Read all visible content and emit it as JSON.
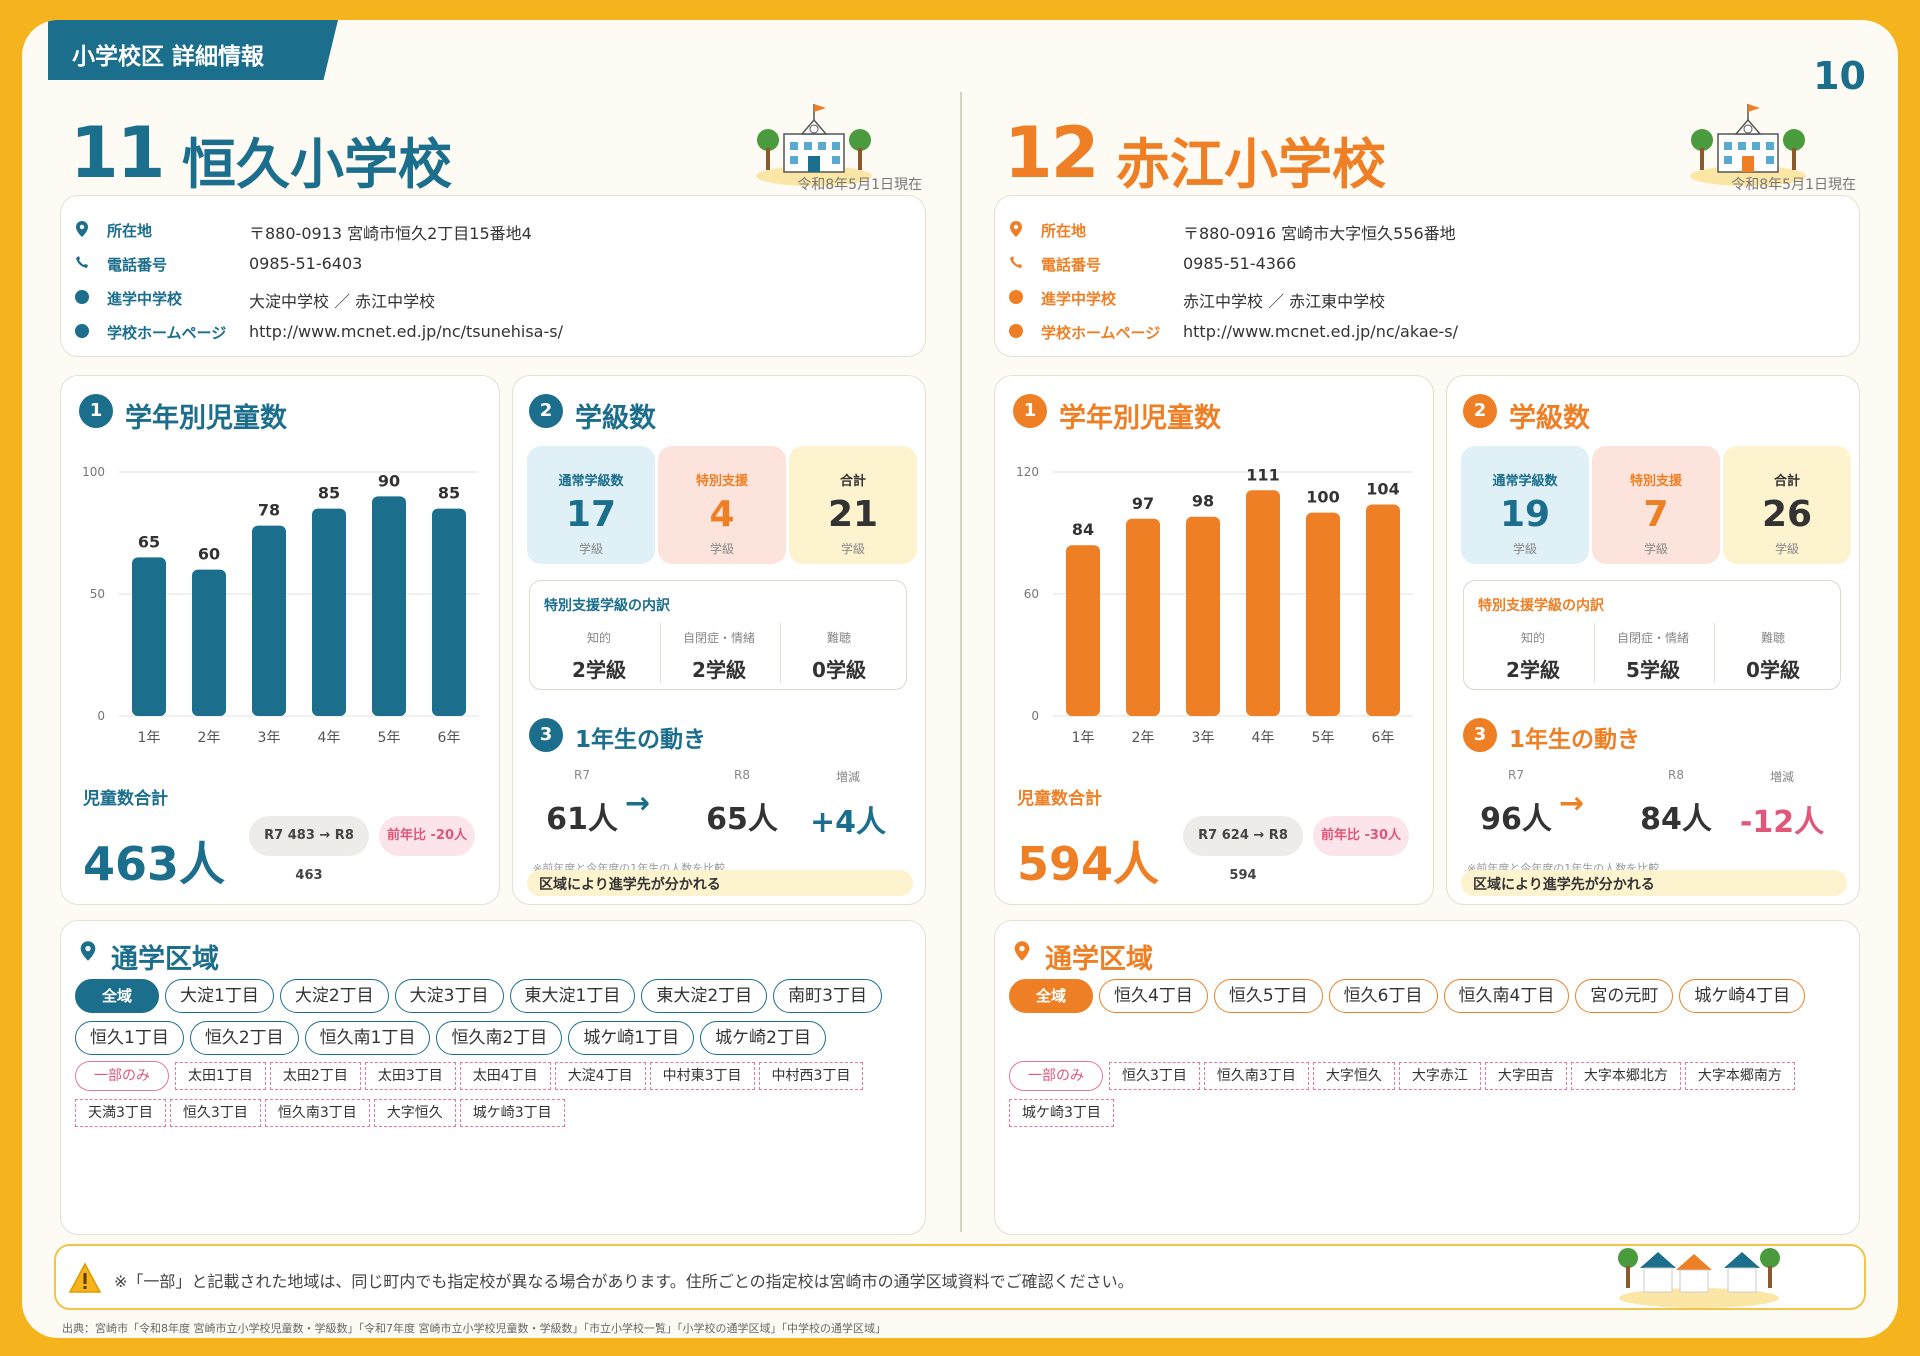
{
  "header": {
    "section_tag": "小学校区 詳細情報",
    "page_number": "10"
  },
  "colors": {
    "teal": "#1b6e8c",
    "orange": "#ee7f24",
    "pink": "#e0577a",
    "yellow": "#f5b41d"
  },
  "schools": [
    {
      "number": "11",
      "name": "恒久小学校",
      "as_of": "令和8年5月1日現在",
      "accent": "#1b6e8c",
      "info": [
        {
          "icon": "location-pin-icon",
          "label": "所在地",
          "value": "〒880-0913 宮崎市恒久2丁目15番地4"
        },
        {
          "icon": "phone-icon",
          "label": "電話番号",
          "value": "0985-51-6403"
        },
        {
          "icon": "circle-bullet-icon",
          "label": "進学中学校",
          "value": "大淀中学校 ／ 赤江中学校"
        },
        {
          "icon": "circle-bullet-icon",
          "label": "学校ホームページ",
          "value": "http://www.mcnet.ed.jp/nc/tsunehisa-s/"
        }
      ],
      "kids": {
        "heading_num": "1",
        "heading": "学年別児童数",
        "total_label": "児童数合計",
        "total": "463人",
        "compare": "R7 483 → R8 463",
        "yoy": "前年比 -20人"
      },
      "classes": {
        "heading_num": "2",
        "heading": "学級数",
        "tiles": [
          {
            "label": "通常学級数",
            "value": "17",
            "unit": "学級",
            "bg": "#dff0f7",
            "fg": "#1b6e8c"
          },
          {
            "label": "特別支援",
            "value": "4",
            "unit": "学級",
            "bg": "#fce4dc",
            "fg": "#ee7f24"
          },
          {
            "label": "合計",
            "value": "21",
            "unit": "学級",
            "bg": "#fdf3cf",
            "fg": "#333333"
          }
        ],
        "breakdown_title": "特別支援学級の内訳",
        "breakdown": [
          {
            "label": "知的",
            "value": "2学級"
          },
          {
            "label": "自閉症・情緒",
            "value": "2学級"
          },
          {
            "label": "難聴",
            "value": "0学級"
          }
        ]
      },
      "movement": {
        "heading_num": "3",
        "heading": "1年生の動き",
        "r7_label": "R7",
        "r7": "61人",
        "arrow": "→",
        "r8_label": "R8",
        "r8": "65人",
        "diff_label": "増減",
        "diff": "+4人",
        "diff_color": "#1b6e8c",
        "note": "※前年度と今年度の1年生の人数を比較",
        "band": "区域により進学先が分かれる"
      },
      "chart_data": {
        "type": "bar",
        "categories": [
          "1年",
          "2年",
          "3年",
          "4年",
          "5年",
          "6年"
        ],
        "values": [
          65,
          60,
          78,
          85,
          90,
          85
        ],
        "ylim": [
          0,
          100
        ],
        "yticks": [
          0,
          50,
          100
        ],
        "color": "#1b6e8c"
      },
      "area": {
        "heading": "通学区域",
        "all_label": "全域",
        "all": [
          "大淀1丁目",
          "大淀2丁目",
          "大淀3丁目",
          "東大淀1丁目",
          "東大淀2丁目",
          "南町3丁目",
          "恒久1丁目",
          "恒久2丁目",
          "恒久南1丁目",
          "恒久南2丁目",
          "城ケ崎1丁目",
          "城ケ崎2丁目"
        ],
        "part_label": "一部のみ",
        "part": [
          "太田1丁目",
          "太田2丁目",
          "太田3丁目",
          "太田4丁目",
          "大淀4丁目",
          "中村東3丁目",
          "中村西3丁目",
          "天満3丁目",
          "恒久3丁目",
          "恒久南3丁目",
          "大字恒久",
          "城ケ崎3丁目"
        ]
      }
    },
    {
      "number": "12",
      "name": "赤江小学校",
      "as_of": "令和8年5月1日現在",
      "accent": "#ee7f24",
      "info": [
        {
          "icon": "location-pin-icon",
          "label": "所在地",
          "value": "〒880-0916 宮崎市大字恒久556番地"
        },
        {
          "icon": "phone-icon",
          "label": "電話番号",
          "value": "0985-51-4366"
        },
        {
          "icon": "circle-bullet-icon",
          "label": "進学中学校",
          "value": "赤江中学校 ／ 赤江東中学校"
        },
        {
          "icon": "circle-bullet-icon",
          "label": "学校ホームページ",
          "value": "http://www.mcnet.ed.jp/nc/akae-s/"
        }
      ],
      "kids": {
        "heading_num": "1",
        "heading": "学年別児童数",
        "total_label": "児童数合計",
        "total": "594人",
        "compare": "R7 624 → R8 594",
        "yoy": "前年比 -30人"
      },
      "classes": {
        "heading_num": "2",
        "heading": "学級数",
        "tiles": [
          {
            "label": "通常学級数",
            "value": "19",
            "unit": "学級",
            "bg": "#dff0f7",
            "fg": "#1b6e8c"
          },
          {
            "label": "特別支援",
            "value": "7",
            "unit": "学級",
            "bg": "#fce4dc",
            "fg": "#ee7f24"
          },
          {
            "label": "合計",
            "value": "26",
            "unit": "学級",
            "bg": "#fdf3cf",
            "fg": "#333333"
          }
        ],
        "breakdown_title": "特別支援学級の内訳",
        "breakdown": [
          {
            "label": "知的",
            "value": "2学級"
          },
          {
            "label": "自閉症・情緒",
            "value": "5学級"
          },
          {
            "label": "難聴",
            "value": "0学級"
          }
        ]
      },
      "movement": {
        "heading_num": "3",
        "heading": "1年生の動き",
        "r7_label": "R7",
        "r7": "96人",
        "arrow": "→",
        "r8_label": "R8",
        "r8": "84人",
        "diff_label": "増減",
        "diff": "-12人",
        "diff_color": "#e0577a",
        "note": "※前年度と今年度の1年生の人数を比較",
        "band": "区域により進学先が分かれる"
      },
      "chart_data": {
        "type": "bar",
        "categories": [
          "1年",
          "2年",
          "3年",
          "4年",
          "5年",
          "6年"
        ],
        "values": [
          84,
          97,
          98,
          111,
          100,
          104
        ],
        "ylim": [
          0,
          120
        ],
        "yticks": [
          0,
          60,
          120
        ],
        "color": "#ee7f24"
      },
      "area": {
        "heading": "通学区域",
        "all_label": "全域",
        "all": [
          "恒久4丁目",
          "恒久5丁目",
          "恒久6丁目",
          "恒久南4丁目",
          "宮の元町",
          "城ケ崎4丁目"
        ],
        "part_label": "一部のみ",
        "part": [
          "恒久3丁目",
          "恒久南3丁目",
          "大字恒久",
          "大字赤江",
          "大字田吉",
          "大字本郷北方",
          "大字本郷南方",
          "城ケ崎3丁目"
        ]
      }
    }
  ],
  "footer": {
    "note": "※「一部」と記載された地域は、同じ町内でも指定校が異なる場合があります。住所ごとの指定校は宮崎市の通学区域資料でご確認ください。",
    "source": "出典：宮崎市「令和8年度 宮崎市立小学校児童数・学級数」「令和7年度 宮崎市立小学校児童数・学級数」「市立小学校一覧」「小学校の通学区域」「中学校の通学区域」"
  }
}
